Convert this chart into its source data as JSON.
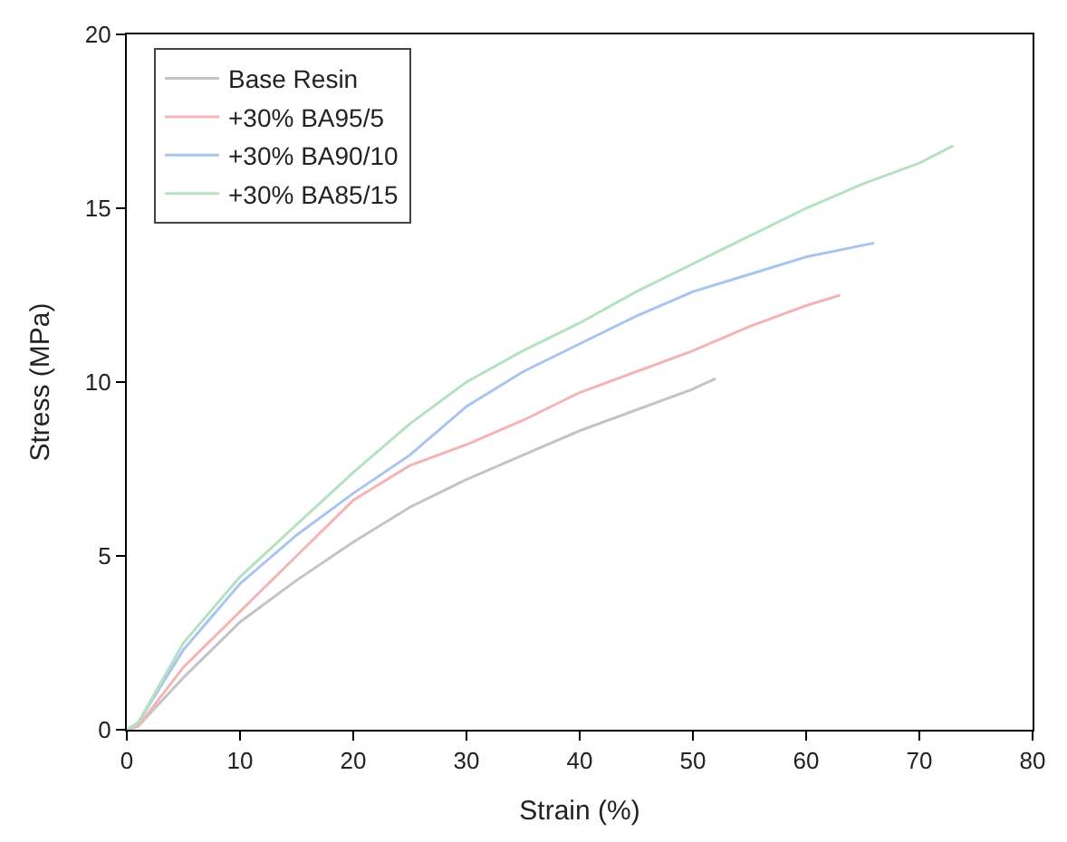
{
  "chart_data": {
    "type": "line",
    "xlabel": "Strain (%)",
    "ylabel": "Stress (MPa)",
    "xlim": [
      0,
      80
    ],
    "xticks": [
      0,
      10,
      20,
      30,
      40,
      50,
      60,
      70,
      80
    ],
    "ylim": [
      0,
      20
    ],
    "yticks": [
      0,
      5,
      10,
      15,
      20
    ],
    "legend": "top left",
    "marker": "none",
    "line_style": "solid",
    "series": [
      {
        "name": "Base Resin",
        "color": "#c4c4c4",
        "x": [
          0,
          1,
          5,
          10,
          15,
          20,
          25,
          30,
          35,
          40,
          45,
          50,
          52
        ],
        "values": [
          0,
          0.1,
          1.5,
          3.1,
          4.3,
          5.4,
          6.4,
          7.2,
          7.9,
          8.6,
          9.2,
          9.8,
          10.1
        ]
      },
      {
        "name": "+30% BA95/5",
        "color": "#f4b4b4",
        "x": [
          0,
          1,
          5,
          10,
          15,
          20,
          25,
          30,
          35,
          40,
          45,
          50,
          55,
          60,
          63
        ],
        "values": [
          0,
          0.1,
          1.8,
          3.4,
          5,
          6.6,
          7.6,
          8.2,
          8.9,
          9.7,
          10.3,
          10.9,
          11.6,
          12.2,
          12.5
        ]
      },
      {
        "name": "+30% BA90/10",
        "color": "#a8c4f0",
        "x": [
          0,
          1,
          5,
          10,
          15,
          20,
          25,
          30,
          35,
          40,
          45,
          50,
          55,
          60,
          66
        ],
        "values": [
          0,
          0.2,
          2.3,
          4.2,
          5.6,
          6.8,
          7.9,
          9.3,
          10.3,
          11.1,
          11.9,
          12.6,
          13.1,
          13.6,
          14.0
        ]
      },
      {
        "name": "+30% BA85/15",
        "color": "#b4e2c0",
        "x": [
          0,
          1,
          5,
          10,
          15,
          20,
          25,
          30,
          35,
          40,
          45,
          50,
          55,
          60,
          65,
          70,
          73
        ],
        "values": [
          0,
          0.2,
          2.5,
          4.4,
          5.9,
          7.4,
          8.8,
          10,
          10.9,
          11.7,
          12.6,
          13.4,
          14.2,
          15.0,
          15.7,
          16.3,
          16.8
        ]
      }
    ]
  }
}
